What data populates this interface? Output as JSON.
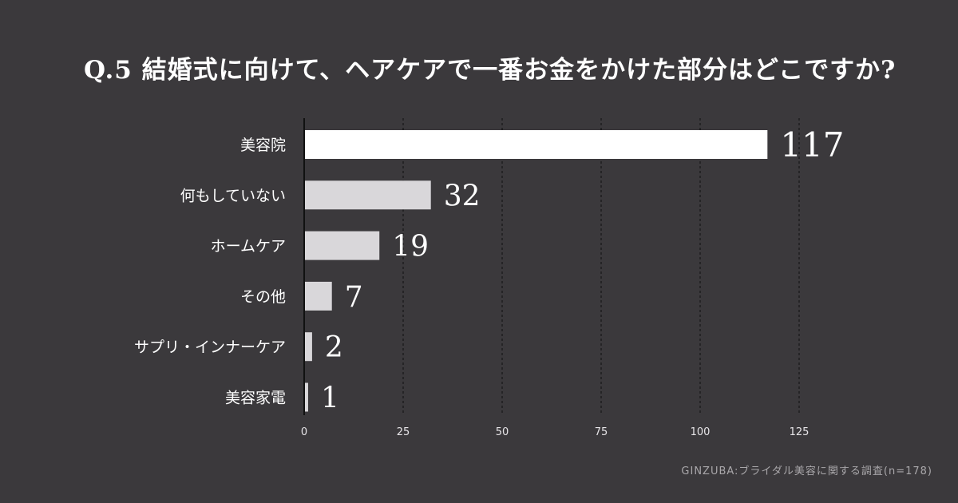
{
  "title": "Q.5  結婚式に向けて、ヘアケアで一番お金をかけた部分はどこですか?",
  "source": "GINZUBA:ブライダル美容に関する調査(n=178)",
  "colors": {
    "background": "#3b393c",
    "top_bar": "#ffffff",
    "other_bars": "#d9d7da",
    "grid": "#1c1b1d",
    "text": "#ffffff",
    "tick_text": "#e6e4e7"
  },
  "chart_data": {
    "type": "bar",
    "orientation": "horizontal",
    "categories": [
      "美容院",
      "何もしていない",
      "ホームケア",
      "その他",
      "サプリ・インナーケア",
      "美容家電"
    ],
    "values": [
      117,
      32,
      19,
      7,
      2,
      1
    ],
    "data_labels": [
      "117",
      "32",
      "19",
      "7",
      "2",
      "1"
    ],
    "xlim": [
      0,
      125
    ],
    "xticks": [
      0,
      25,
      50,
      75,
      100,
      125
    ],
    "xtick_labels": [
      "0",
      "25",
      "50",
      "75",
      "100",
      "125"
    ],
    "grid": "vertical dotted",
    "legend": "none"
  }
}
